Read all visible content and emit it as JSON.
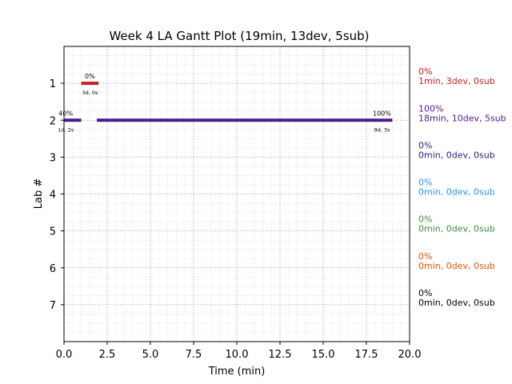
{
  "chart_data": {
    "type": "gantt",
    "title": "Week 4 LA Gantt Plot (19min, 13dev, 5sub)",
    "xlabel": "Time (min)",
    "ylabel": "Lab #",
    "xlim": [
      0,
      20
    ],
    "ylim": [
      8,
      0
    ],
    "xticks": [
      "0.0",
      "2.5",
      "5.0",
      "7.5",
      "10.0",
      "12.5",
      "15.0",
      "17.5",
      "20.0"
    ],
    "yticks": [
      "1",
      "2",
      "3",
      "4",
      "5",
      "6",
      "7"
    ],
    "grid": true,
    "bars": [
      {
        "lab": 1,
        "start": 1.0,
        "end": 2.0,
        "color": "#c0201e"
      },
      {
        "lab": 2,
        "start": 0.0,
        "end": 1.0,
        "color": "#4b1a8f"
      },
      {
        "lab": 2,
        "start": 1.9,
        "end": 19.0,
        "color": "#4b1a8f"
      }
    ],
    "bar_annotations": [
      {
        "lab": 1,
        "x": 1.5,
        "pct": "0%",
        "sub": "3d, 0s"
      },
      {
        "lab": 2,
        "x": 0.1,
        "pct": "40%",
        "sub": "1d, 2s"
      },
      {
        "lab": 2,
        "x": 18.4,
        "pct": "100%",
        "sub": "9d, 3s"
      }
    ],
    "side_labels": [
      {
        "lab": 1,
        "pct": "0%",
        "summary": "1min, 3dev, 0sub",
        "color": "#c0201e"
      },
      {
        "lab": 2,
        "pct": "100%",
        "summary": "18min, 10dev, 5sub",
        "color": "#4b1a8f"
      },
      {
        "lab": 3,
        "pct": "0%",
        "summary": "0min, 0dev, 0sub",
        "color": "#1f1f7a"
      },
      {
        "lab": 4,
        "pct": "0%",
        "summary": "0min, 0dev, 0sub",
        "color": "#2196f3"
      },
      {
        "lab": 5,
        "pct": "0%",
        "summary": "0min, 0dev, 0sub",
        "color": "#388e3c"
      },
      {
        "lab": 6,
        "pct": "0%",
        "summary": "0min, 0dev, 0sub",
        "color": "#e65100"
      },
      {
        "lab": 7,
        "pct": "0%",
        "summary": "0min, 0dev, 0sub",
        "color": "#000000"
      }
    ]
  }
}
